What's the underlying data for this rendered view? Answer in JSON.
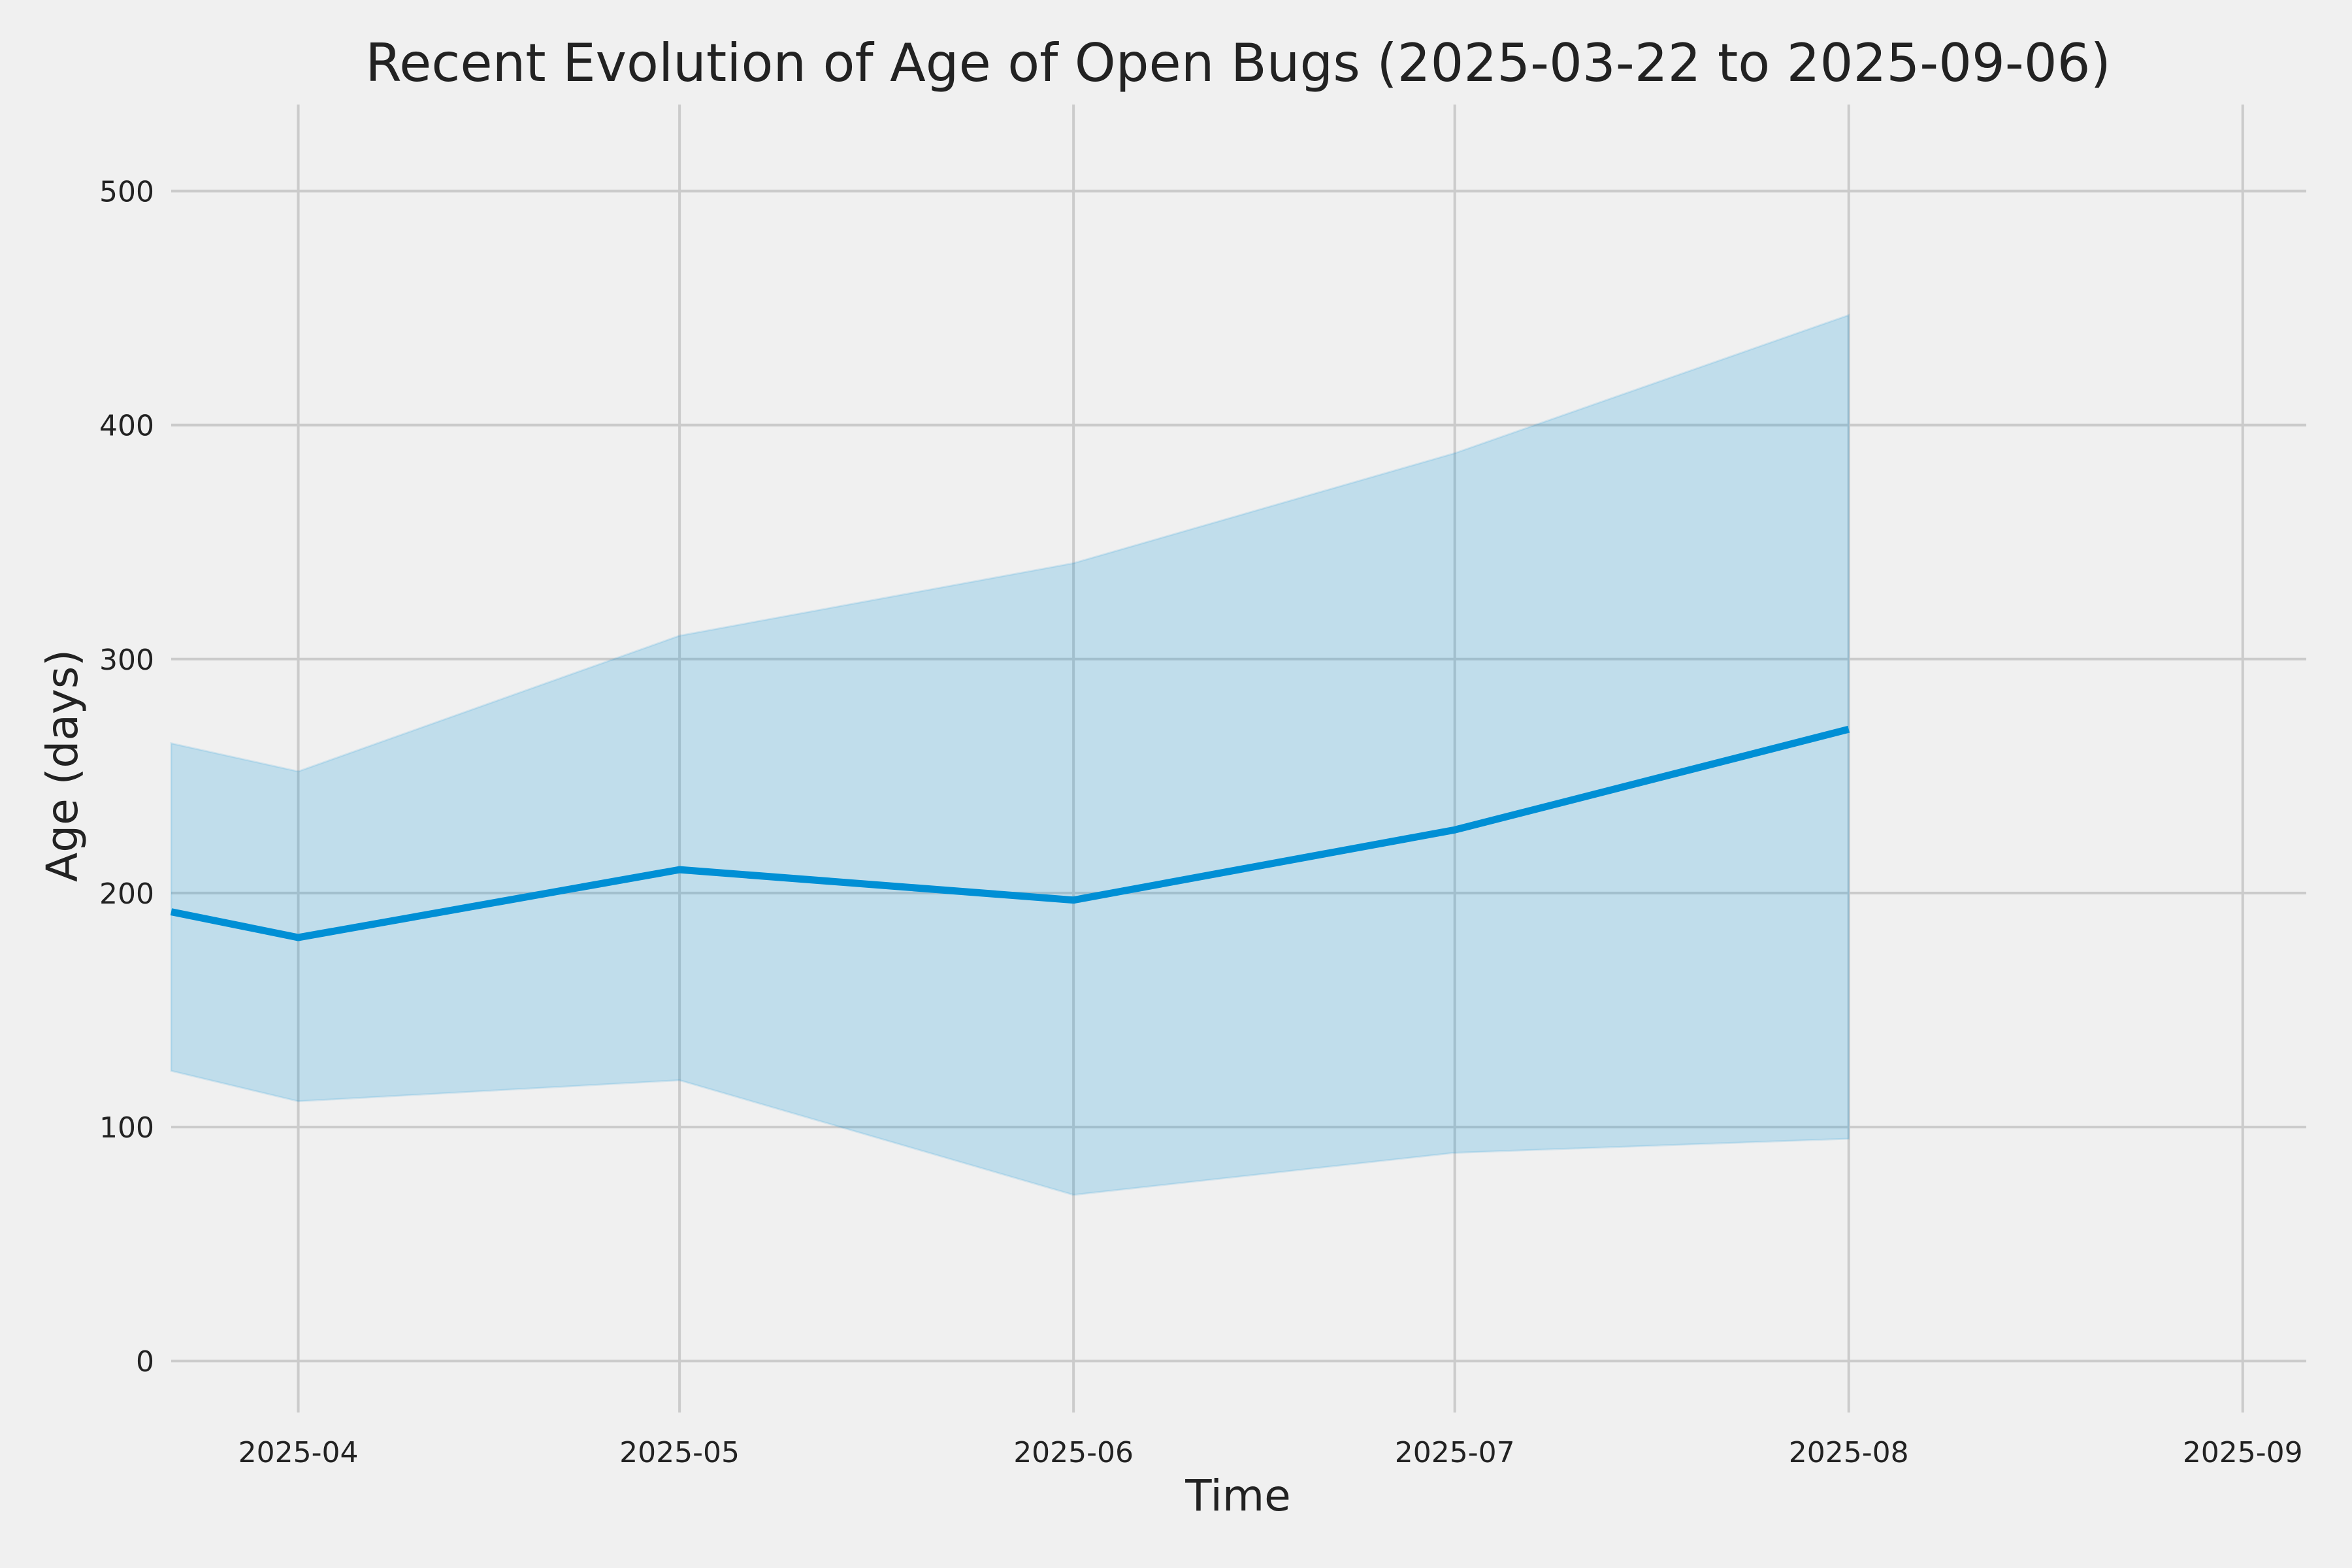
{
  "chart_data": {
    "type": "line",
    "title": "Recent Evolution of Age of Open Bugs (2025-03-22 to 2025-09-06)",
    "xlabel": "Time",
    "ylabel": "Age (days)",
    "x": [
      "2025-03-22",
      "2025-04-01",
      "2025-05-01",
      "2025-06-01",
      "2025-07-01",
      "2025-08-01"
    ],
    "series": [
      {
        "values": [
          192,
          181,
          210,
          197,
          227,
          270
        ],
        "band_upper": [
          264,
          252,
          310,
          341,
          388,
          447
        ],
        "band_lower": [
          124,
          111,
          120,
          71,
          89,
          95
        ]
      }
    ],
    "xlim": [
      "2025-03-22",
      "2025-09-06"
    ],
    "ylim": [
      -22,
      537
    ],
    "xticks": [
      "2025-04-01",
      "2025-05-01",
      "2025-06-01",
      "2025-07-01",
      "2025-08-01",
      "2025-09-01"
    ],
    "xtick_labels": [
      "2025-04",
      "2025-05",
      "2025-06",
      "2025-07",
      "2025-08",
      "2025-09"
    ],
    "yticks": [
      0,
      100,
      200,
      300,
      400,
      500
    ],
    "ytick_labels": [
      "0",
      "100",
      "200",
      "300",
      "400",
      "500"
    ],
    "grid": true,
    "colors": {
      "background": "#f0f0f0",
      "grid": "#cbcbcb",
      "line": "#008fd5",
      "band": "#008fd5",
      "text": "#222222"
    }
  }
}
